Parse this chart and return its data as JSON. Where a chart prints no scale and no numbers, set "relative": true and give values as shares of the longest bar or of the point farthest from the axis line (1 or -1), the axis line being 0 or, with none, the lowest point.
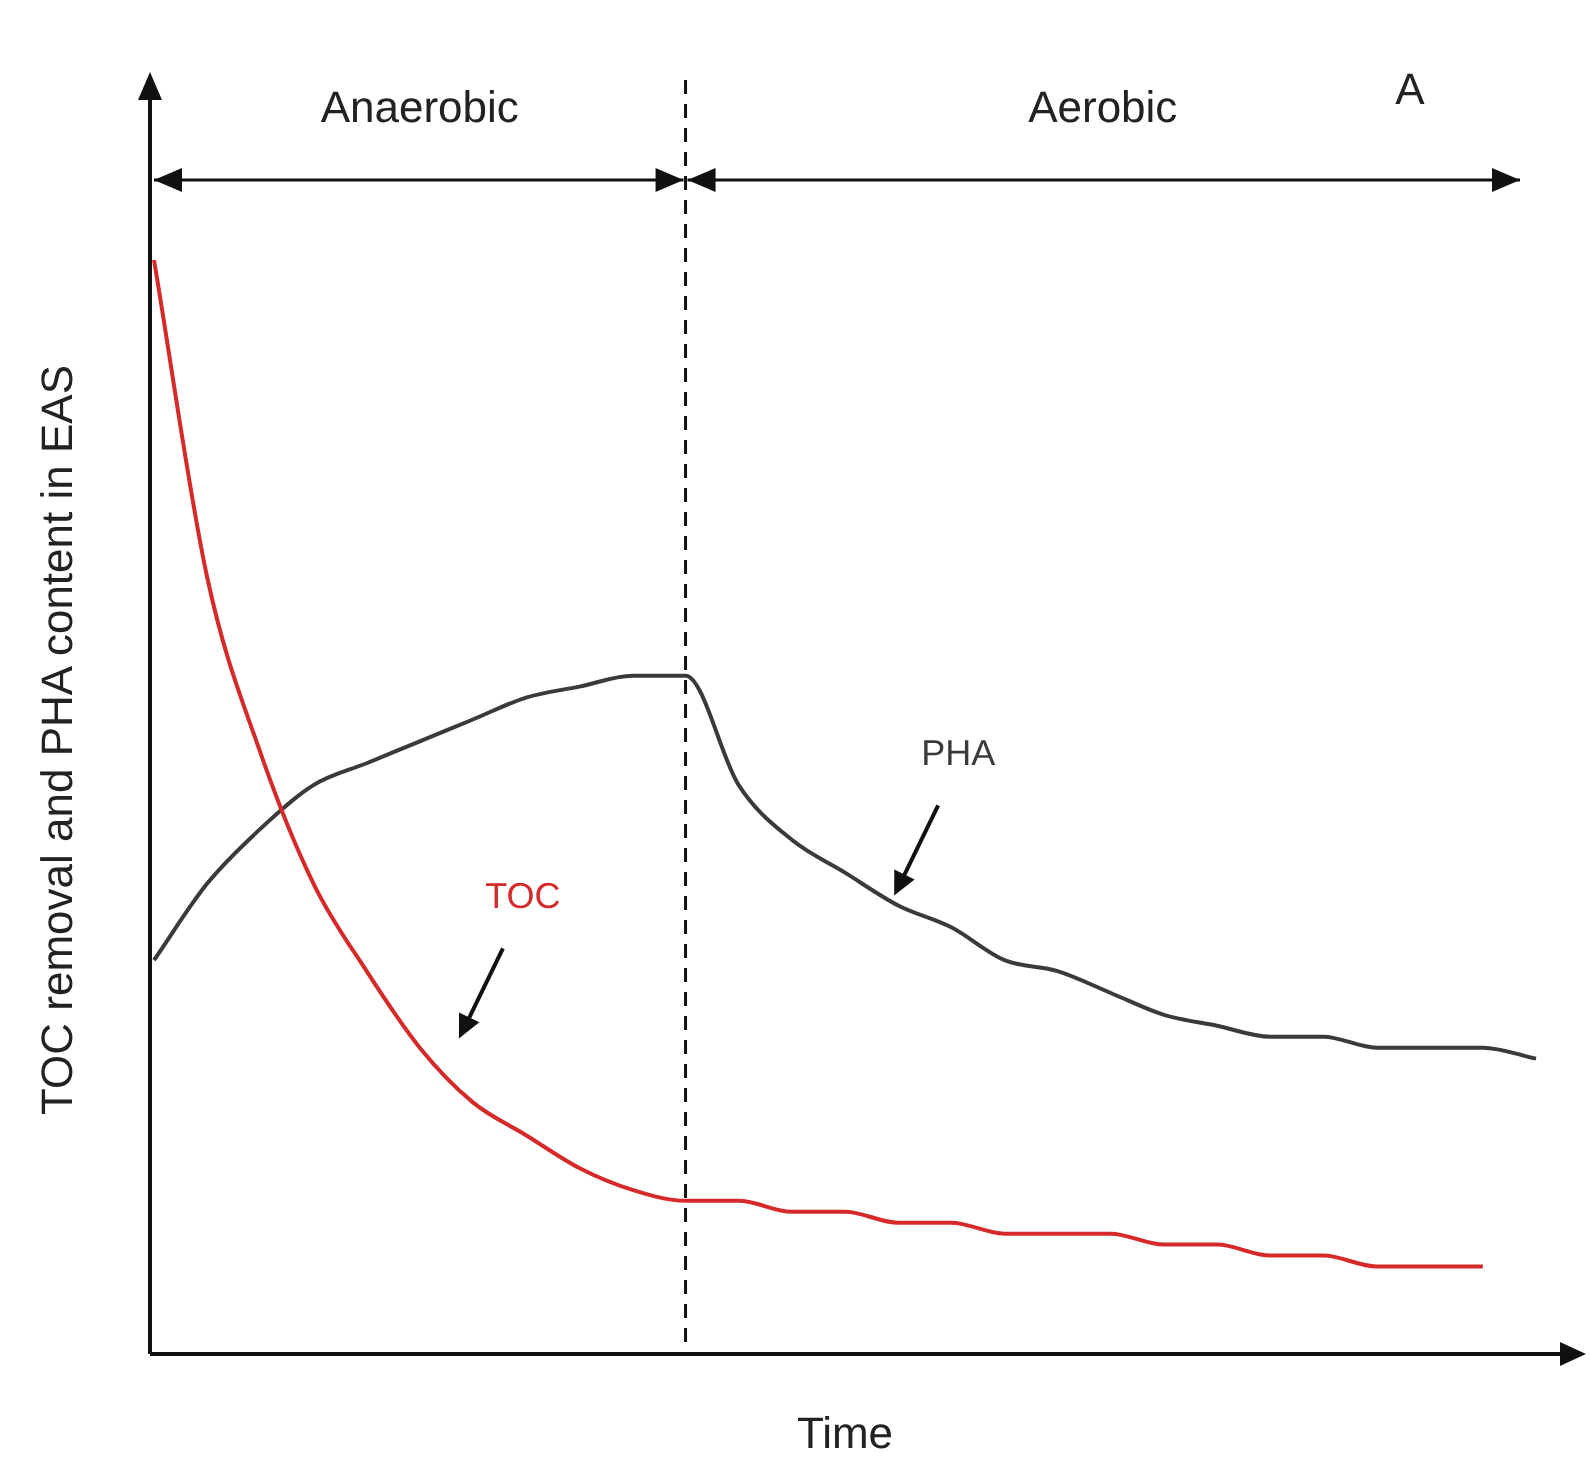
{
  "chart_data": {
    "type": "line",
    "relative": true,
    "xlabel": "Time",
    "ylabel": "TOC removal and PHA content in EAS",
    "legend": false,
    "marker": "none",
    "categories": [
      null,
      null,
      null,
      null,
      null,
      null,
      null,
      null,
      null,
      null,
      null,
      null,
      null,
      null,
      null,
      null,
      null,
      null,
      null,
      null,
      null,
      null,
      null,
      null,
      null,
      null,
      null
    ],
    "annotations": [
      "Anaerobic",
      "Aerobic",
      "A"
    ],
    "series": [
      {
        "name": "TOC",
        "color": "#d62a2a",
        "values": [
          1.0,
          0.71,
          0.55,
          0.43,
          0.35,
          0.28,
          0.23,
          0.2,
          0.17,
          0.15,
          0.14,
          0.14,
          0.13,
          0.13,
          0.12,
          0.12,
          0.11,
          0.11,
          0.11,
          0.1,
          0.1,
          0.09,
          0.09,
          0.08,
          0.08,
          0.08,
          null
        ]
      },
      {
        "name": "PHA",
        "color": "#3a3a3a",
        "values": [
          0.36,
          0.43,
          0.48,
          0.52,
          0.54,
          0.56,
          0.58,
          0.6,
          0.61,
          0.62,
          0.62,
          0.52,
          0.47,
          0.44,
          0.41,
          0.39,
          0.36,
          0.35,
          0.33,
          0.31,
          0.3,
          0.29,
          0.29,
          0.28,
          0.28,
          0.28,
          0.27
        ]
      }
    ]
  }
}
